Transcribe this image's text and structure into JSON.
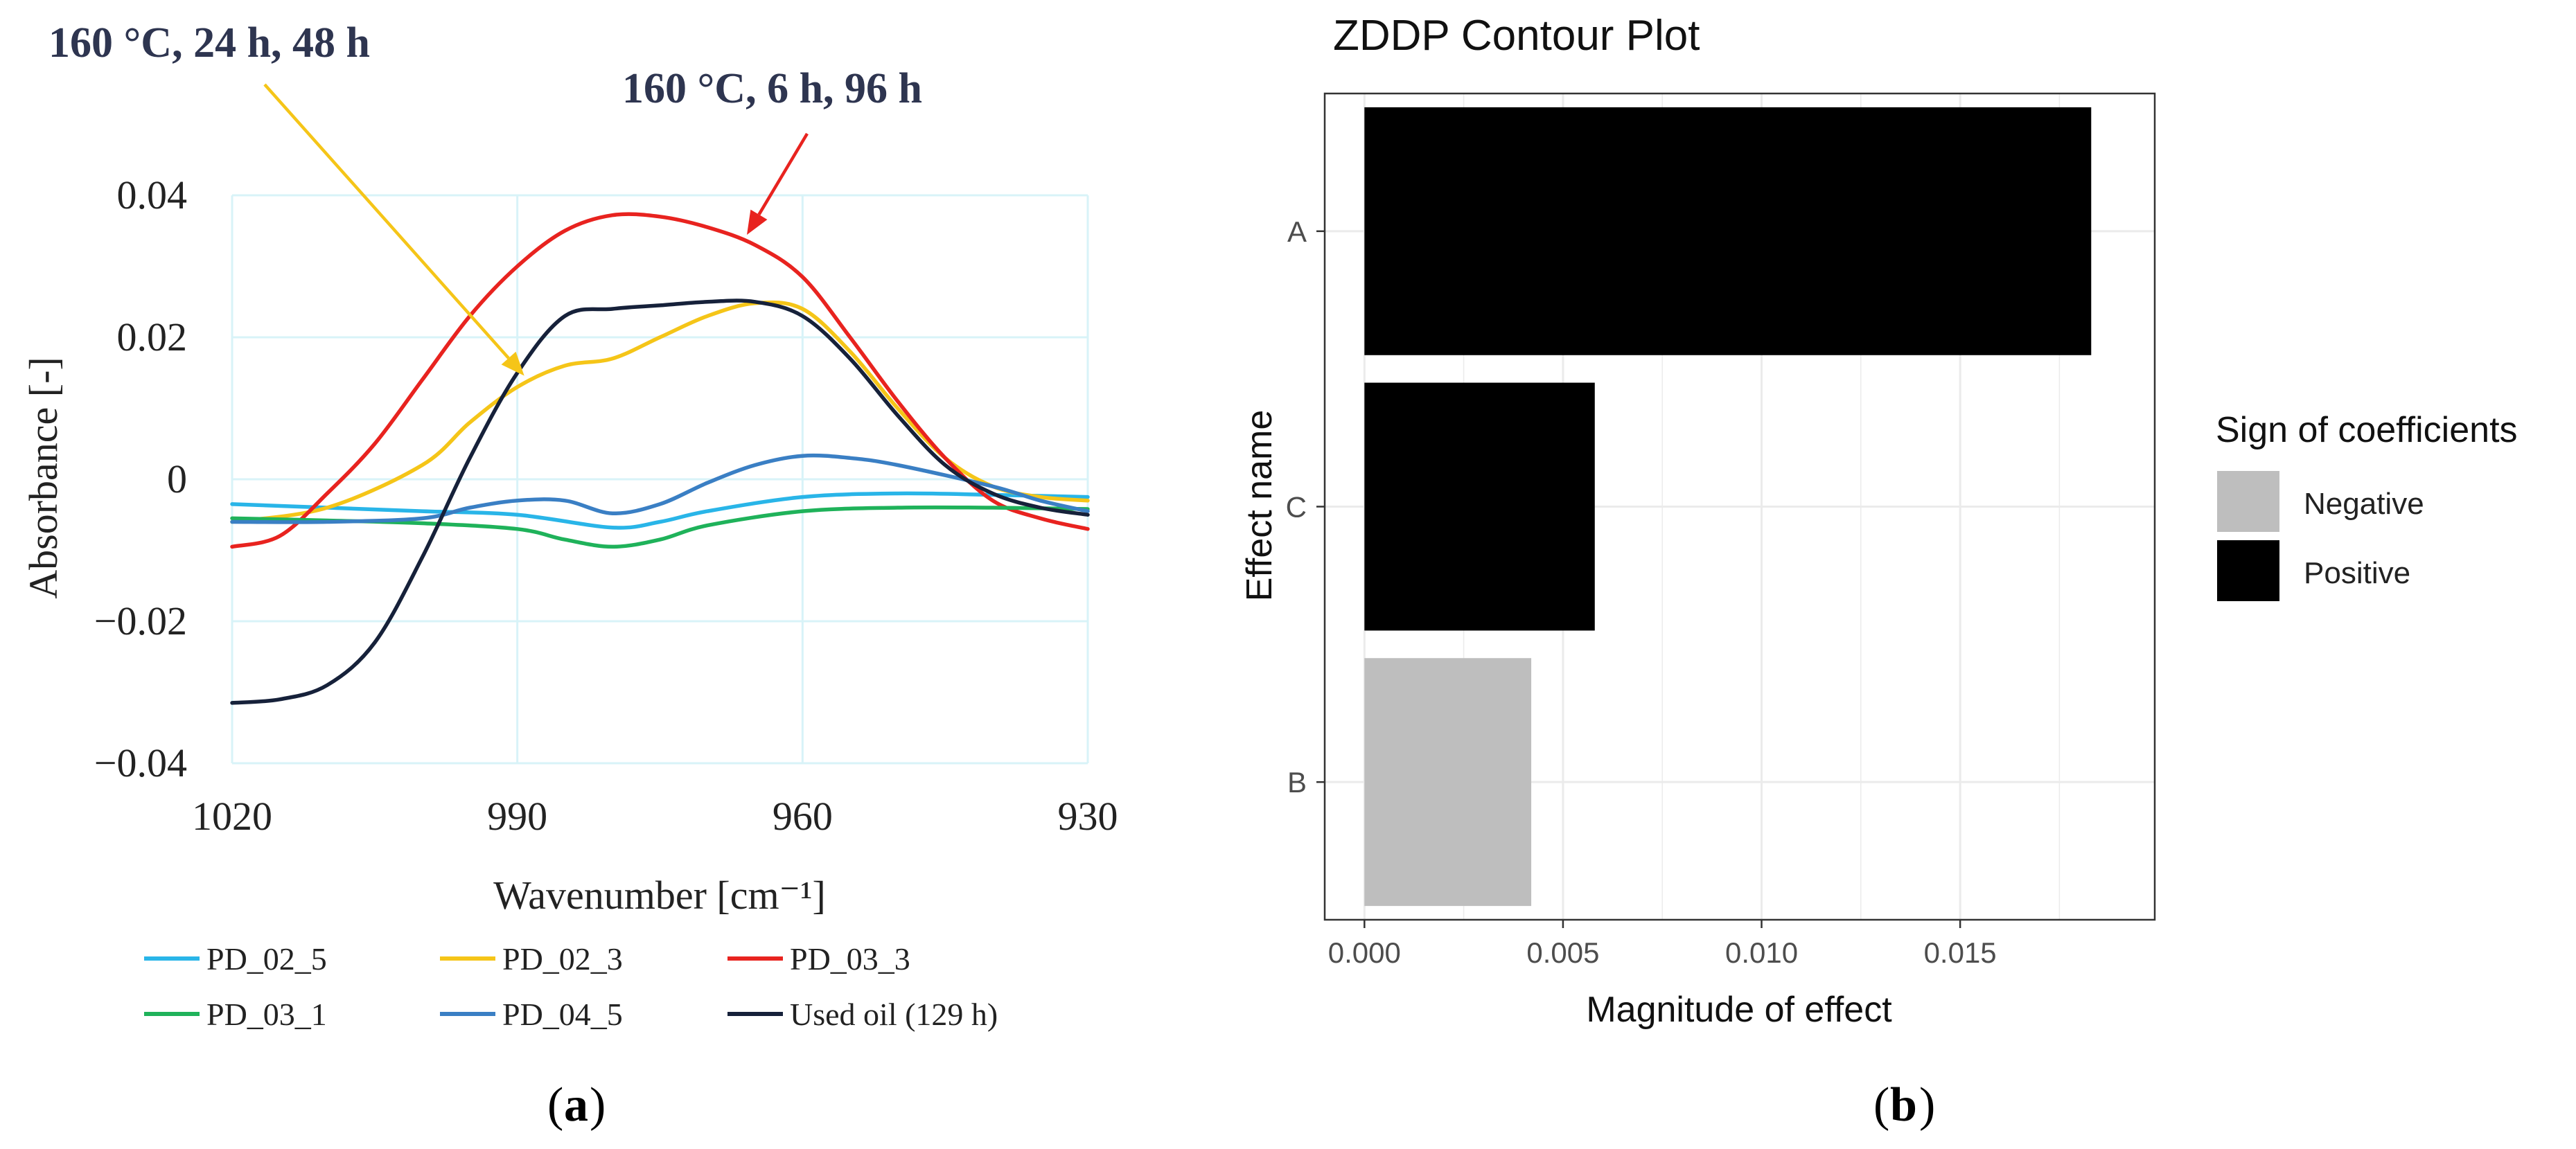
{
  "colors": {
    "cyan": "#29b5e8",
    "yellow": "#f5c518",
    "red": "#e8231f",
    "green": "#1fb25a",
    "blue": "#3a7fc4",
    "navy": "#16213a",
    "grid_a": "#d8f3f8",
    "grid_b": "#ebebeb",
    "negative": "#bebebe",
    "positive": "#000000",
    "annot_text": "#2e3550"
  },
  "chart_data": [
    {
      "type": "line",
      "panel_label": "a",
      "xlabel": "Wavenumber [cm⁻¹]",
      "ylabel": "Absorbance [-]",
      "xlim": [
        1020,
        930
      ],
      "ylim": [
        -0.04,
        0.04
      ],
      "xticks": [
        1020,
        990,
        960,
        930
      ],
      "xtick_labels": [
        "1020",
        "990",
        "960",
        "930"
      ],
      "yticks": [
        0.04,
        0.02,
        0,
        -0.02,
        -0.04
      ],
      "ytick_labels": [
        "0.04",
        "0.02",
        "0",
        "−0.02",
        "−0.04"
      ],
      "annotations": [
        {
          "text": "160 °C, 24 h, 48 h",
          "color": "#f5c518",
          "target": [
            990,
            0.014
          ]
        },
        {
          "text": "160 °C, 6 h, 96 h",
          "color": "#e8231f",
          "target": [
            966,
            0.036
          ]
        }
      ],
      "series": [
        {
          "name": "PD_02_5",
          "color": "#29b5e8",
          "x": [
            1020,
            1010,
            1000,
            990,
            980,
            975,
            970,
            960,
            950,
            940,
            930
          ],
          "y": [
            -0.0035,
            -0.004,
            -0.0045,
            -0.005,
            -0.0068,
            -0.006,
            -0.0045,
            -0.0025,
            -0.002,
            -0.0022,
            -0.0025
          ]
        },
        {
          "name": "PD_02_3",
          "color": "#f5c518",
          "x": [
            1020,
            1010,
            1000,
            995,
            990,
            985,
            980,
            975,
            970,
            965,
            960,
            955,
            950,
            945,
            940,
            935,
            930
          ],
          "y": [
            -0.006,
            -0.004,
            0.002,
            0.008,
            0.013,
            0.016,
            0.017,
            0.02,
            0.023,
            0.0248,
            0.024,
            0.018,
            0.01,
            0.003,
            -0.001,
            -0.0025,
            -0.003
          ]
        },
        {
          "name": "PD_03_3",
          "color": "#e8231f",
          "x": [
            1020,
            1015,
            1010,
            1005,
            1000,
            995,
            990,
            985,
            980,
            975,
            970,
            965,
            960,
            955,
            950,
            945,
            940,
            935,
            930
          ],
          "y": [
            -0.0095,
            -0.008,
            -0.002,
            0.005,
            0.014,
            0.023,
            0.03,
            0.035,
            0.0372,
            0.037,
            0.0355,
            0.033,
            0.0285,
            0.02,
            0.011,
            0.003,
            -0.003,
            -0.0055,
            -0.007
          ]
        },
        {
          "name": "PD_03_1",
          "color": "#1fb25a",
          "x": [
            1020,
            1010,
            1000,
            990,
            985,
            980,
            975,
            970,
            960,
            950,
            940,
            930
          ],
          "y": [
            -0.0055,
            -0.0058,
            -0.0062,
            -0.007,
            -0.0085,
            -0.0095,
            -0.0085,
            -0.0065,
            -0.0045,
            -0.004,
            -0.004,
            -0.0042
          ]
        },
        {
          "name": "PD_04_5",
          "color": "#3a7fc4",
          "x": [
            1020,
            1010,
            1000,
            995,
            990,
            985,
            980,
            975,
            970,
            965,
            960,
            955,
            950,
            940,
            935,
            930
          ],
          "y": [
            -0.006,
            -0.006,
            -0.0055,
            -0.004,
            -0.003,
            -0.003,
            -0.0048,
            -0.0035,
            -0.0005,
            0.002,
            0.0033,
            0.003,
            0.002,
            -0.001,
            -0.003,
            -0.0045
          ]
        },
        {
          "name": "Used oil (129 h)",
          "color": "#16213a",
          "x": [
            1020,
            1015,
            1010,
            1005,
            1000,
            995,
            990,
            985,
            980,
            975,
            970,
            965,
            960,
            955,
            950,
            945,
            940,
            935,
            930
          ],
          "y": [
            -0.0315,
            -0.031,
            -0.029,
            -0.023,
            -0.011,
            0.003,
            0.015,
            0.023,
            0.024,
            0.0245,
            0.025,
            0.025,
            0.023,
            0.017,
            0.009,
            0.002,
            -0.002,
            -0.004,
            -0.005
          ]
        }
      ]
    },
    {
      "type": "bar",
      "orientation": "horizontal",
      "panel_label": "b",
      "title": "ZDDP Contour Plot",
      "xlabel": "Magnitude of effect",
      "ylabel": "Effect name",
      "xlim": [
        -0.001,
        0.0199
      ],
      "xticks": [
        0.0,
        0.005,
        0.01,
        0.015
      ],
      "xtick_labels": [
        "0.000",
        "0.005",
        "0.010",
        "0.015"
      ],
      "categories": [
        "A",
        "C",
        "B"
      ],
      "values": [
        0.0183,
        0.0058,
        0.0042
      ],
      "signs": [
        "Positive",
        "Positive",
        "Negative"
      ],
      "legend": {
        "title": "Sign of coefficients",
        "entries": [
          {
            "label": "Negative",
            "color": "#bebebe"
          },
          {
            "label": "Positive",
            "color": "#000000"
          }
        ]
      }
    }
  ]
}
